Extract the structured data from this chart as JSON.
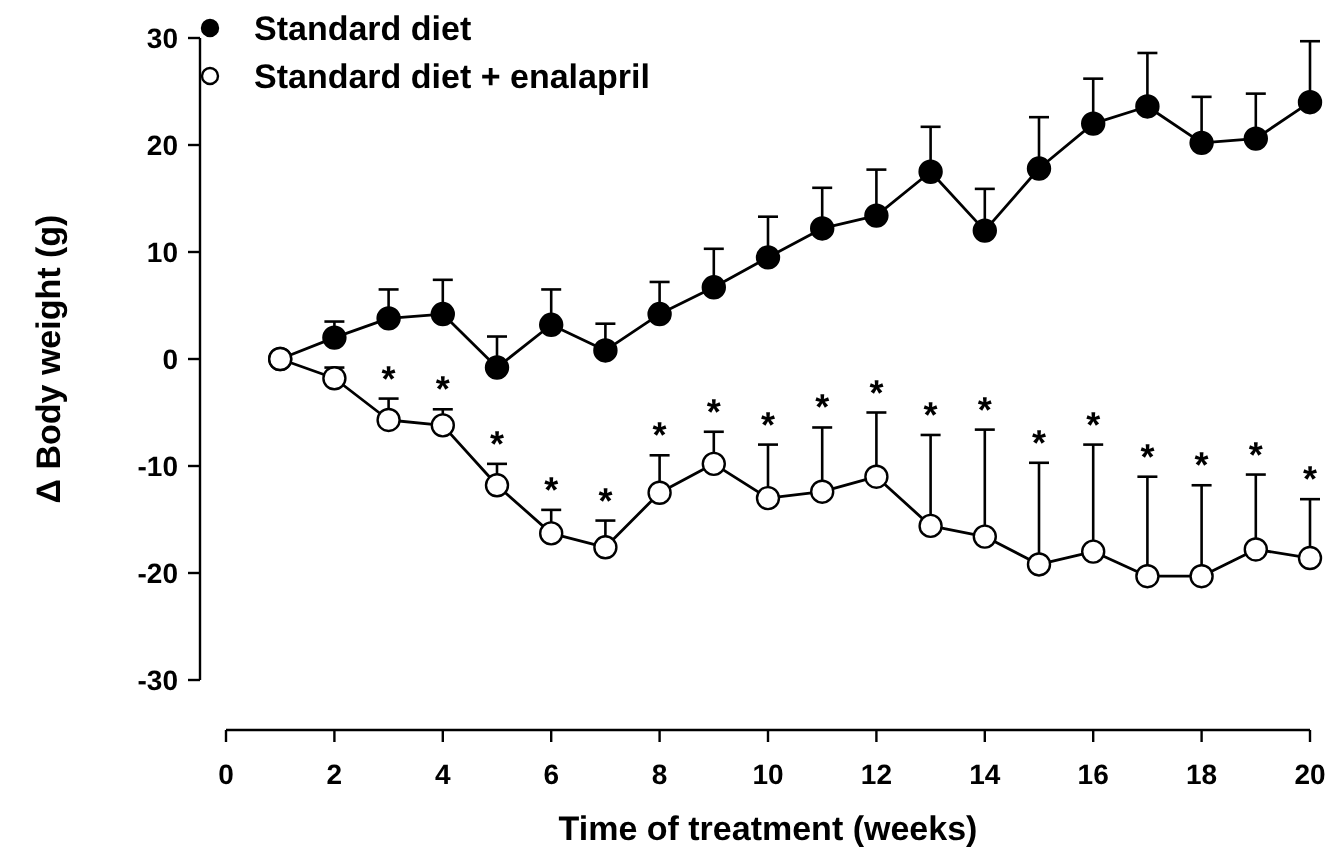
{
  "chart_data": {
    "type": "line",
    "xlabel": "Time of treatment (weeks)",
    "ylabel": "Δ Body weight (g)",
    "x": [
      1,
      2,
      3,
      4,
      5,
      6,
      7,
      8,
      9,
      10,
      11,
      12,
      13,
      14,
      15,
      16,
      17,
      18,
      19,
      20
    ],
    "xlim": [
      0,
      20
    ],
    "xticks": [
      0,
      2,
      4,
      6,
      8,
      10,
      12,
      14,
      16,
      18,
      20
    ],
    "ylim": [
      -30,
      30
    ],
    "yticks": [
      -30,
      -20,
      -10,
      0,
      10,
      20,
      30
    ],
    "grid": false,
    "legend": "top left",
    "marker": "circle",
    "line_style": "solid",
    "series": [
      {
        "name": "Standard diet",
        "color": "#000000",
        "values": [
          0,
          2,
          3.8,
          4.2,
          -0.8,
          3.2,
          0.8,
          4.2,
          6.7,
          9.5,
          12.2,
          13.4,
          17.5,
          12,
          17.8,
          22,
          23.6,
          20.2,
          20.6,
          24
        ],
        "errors": [
          null,
          [
            2,
            3.5
          ],
          [
            3.8,
            6.5
          ],
          [
            4.2,
            7.4
          ],
          [
            -0.8,
            2.1
          ],
          [
            3.2,
            6.5
          ],
          [
            0.8,
            3.3
          ],
          [
            4.2,
            7.2
          ],
          [
            6.7,
            10.3
          ],
          [
            9.5,
            13.3
          ],
          [
            12.2,
            16
          ],
          [
            13.4,
            17.7
          ],
          [
            17.5,
            21.7
          ],
          [
            12,
            15.9
          ],
          [
            17.8,
            22.6
          ],
          [
            22,
            26.2
          ],
          [
            23.6,
            28.6
          ],
          [
            20.2,
            24.5
          ],
          [
            20.6,
            24.8
          ],
          [
            24,
            29.7
          ]
        ]
      },
      {
        "name": "Standard diet + enalapril",
        "color": "#000000",
        "values": [
          0,
          -1.8,
          -5.7,
          -6.2,
          -11.8,
          -16.3,
          -17.6,
          -12.5,
          -9.8,
          -13,
          -12.4,
          -11,
          -15.6,
          -16.6,
          -19.2,
          -18,
          -20.3,
          -20.3,
          -17.8,
          -18.6
        ],
        "errors": [
          null,
          [
            -1.8,
            -0.8
          ],
          [
            -5.7,
            -3.7
          ],
          [
            -6.2,
            -4.7
          ],
          [
            -11.8,
            -9.8
          ],
          [
            -16.3,
            -14.1
          ],
          [
            -17.6,
            -15.1
          ],
          [
            -12.5,
            -9
          ],
          [
            -9.8,
            -6.8
          ],
          [
            -13,
            -8
          ],
          [
            -12.4,
            -6.4
          ],
          [
            -11,
            -5
          ],
          [
            -15.6,
            -7.1
          ],
          [
            -16.6,
            -6.6
          ],
          [
            -19.2,
            -9.7
          ],
          [
            -18,
            -8
          ],
          [
            -20.3,
            -11
          ],
          [
            -20.3,
            -11.8
          ],
          [
            -17.8,
            -10.8
          ],
          [
            -18.6,
            -13.1
          ]
        ]
      }
    ],
    "annotations": [
      {
        "text": "*",
        "x": 3,
        "y": -3.7
      },
      {
        "text": "*",
        "x": 4,
        "y": -4.7
      },
      {
        "text": "*",
        "x": 5,
        "y": -9.8
      },
      {
        "text": "*",
        "x": 6,
        "y": -14.1
      },
      {
        "text": "*",
        "x": 7,
        "y": -15.1
      },
      {
        "text": "*",
        "x": 8,
        "y": -9
      },
      {
        "text": "*",
        "x": 9,
        "y": -6.8
      },
      {
        "text": "*",
        "x": 10,
        "y": -8
      },
      {
        "text": "*",
        "x": 11,
        "y": -6.4
      },
      {
        "text": "*",
        "x": 12,
        "y": -5
      },
      {
        "text": "*",
        "x": 13,
        "y": -7.1
      },
      {
        "text": "*",
        "x": 14,
        "y": -6.6
      },
      {
        "text": "*",
        "x": 15,
        "y": -9.7
      },
      {
        "text": "*",
        "x": 16,
        "y": -8
      },
      {
        "text": "*",
        "x": 17,
        "y": -11
      },
      {
        "text": "*",
        "x": 18,
        "y": -11.8
      },
      {
        "text": "*",
        "x": 19,
        "y": -10.8
      },
      {
        "text": "*",
        "x": 20,
        "y": -13.1
      }
    ]
  }
}
